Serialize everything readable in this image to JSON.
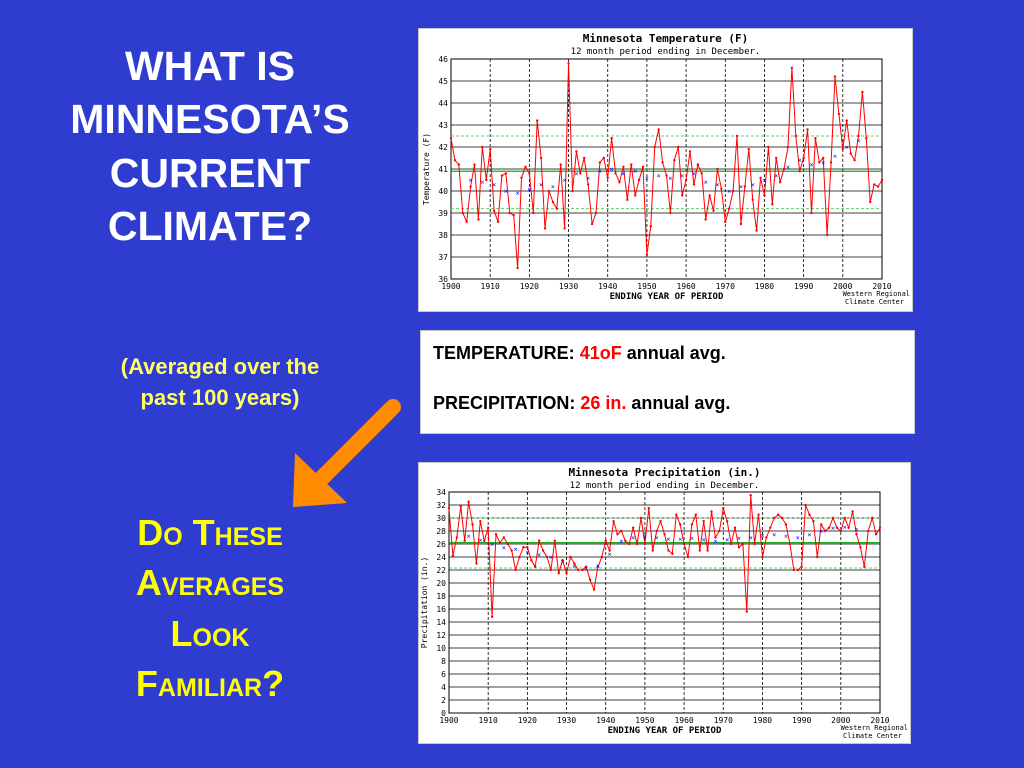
{
  "slide": {
    "title_lines": [
      "WHAT IS",
      "MINNESOTA’S",
      "CURRENT",
      "CLIMATE?"
    ],
    "subtitle_lines": [
      "(Averaged over the",
      "past 100 years)"
    ],
    "question_lines": [
      "Do These",
      "Averages",
      "Look",
      "Familiar?"
    ],
    "arrow_color": "#ff8c00",
    "background_color": "#2f3cd0"
  },
  "info": {
    "temp_label": "TEMPERATURE:",
    "temp_value": "41",
    "temp_unit": "oF",
    "temp_suffix": "annual avg.",
    "precip_label": "PRECIPITATION:",
    "precip_value": "26 in.",
    "precip_suffix": "annual avg."
  },
  "chart_data": [
    {
      "type": "line",
      "title": "Minnesota  Temperature (F)",
      "subtitle": "12 month period ending in December.",
      "xlabel": "ENDING YEAR OF PERIOD",
      "ylabel": "Temperature (F)",
      "credit": [
        "Western Regional",
        "Climate Center"
      ],
      "xlim": [
        1900,
        2010
      ],
      "ylim": [
        36,
        46
      ],
      "xticks": [
        1900,
        1910,
        1920,
        1930,
        1940,
        1950,
        1960,
        1970,
        1980,
        1990,
        2000,
        2010
      ],
      "yticks": [
        36,
        37,
        38,
        39,
        40,
        41,
        42,
        43,
        44,
        45,
        46
      ],
      "reference_lines": {
        "mean": 40.9,
        "std_band": [
          39.2,
          42.5
        ]
      },
      "colors": {
        "series": "#ff0000",
        "moving_avg": "#0000ff",
        "mean": "#00a000",
        "band": "#66cc66"
      },
      "series": [
        {
          "name": "annual",
          "x": [
            1900,
            1901,
            1902,
            1903,
            1904,
            1905,
            1906,
            1907,
            1908,
            1909,
            1910,
            1911,
            1912,
            1913,
            1914,
            1915,
            1916,
            1917,
            1918,
            1919,
            1920,
            1921,
            1922,
            1923,
            1924,
            1925,
            1926,
            1927,
            1928,
            1929,
            1930,
            1931,
            1932,
            1933,
            1934,
            1935,
            1936,
            1937,
            1938,
            1939,
            1940,
            1941,
            1942,
            1943,
            1944,
            1945,
            1946,
            1947,
            1948,
            1949,
            1950,
            1951,
            1952,
            1953,
            1954,
            1955,
            1956,
            1957,
            1958,
            1959,
            1960,
            1961,
            1962,
            1963,
            1964,
            1965,
            1966,
            1967,
            1968,
            1969,
            1970,
            1971,
            1972,
            1973,
            1974,
            1975,
            1976,
            1977,
            1978,
            1979,
            1980,
            1981,
            1982,
            1983,
            1984,
            1985,
            1986,
            1987,
            1988,
            1989,
            1990,
            1991,
            1992,
            1993,
            1994,
            1995,
            1996,
            1997,
            1998,
            1999,
            2000,
            2001,
            2002,
            2003,
            2004,
            2005,
            2006,
            2007,
            2008,
            2009,
            2010
          ],
          "values": [
            42.4,
            41.4,
            41.2,
            39.0,
            38.6,
            40.2,
            41.2,
            38.7,
            42.0,
            40.5,
            41.9,
            39.1,
            38.6,
            40.7,
            40.8,
            39.0,
            38.9,
            36.5,
            40.6,
            41.1,
            40.8,
            39.0,
            43.2,
            41.5,
            38.3,
            40.0,
            39.5,
            39.2,
            41.2,
            38.3,
            45.8,
            40.0,
            41.8,
            40.8,
            41.5,
            40.3,
            38.5,
            39.0,
            41.3,
            41.5,
            40.6,
            42.4,
            40.8,
            40.4,
            41.1,
            39.6,
            41.2,
            39.8,
            40.5,
            41.1,
            37.1,
            38.4,
            42.0,
            42.8,
            41.3,
            40.7,
            39.0,
            41.4,
            42.0,
            39.8,
            40.5,
            41.8,
            40.3,
            41.2,
            40.8,
            38.7,
            39.8,
            39.1,
            41.0,
            40.1,
            38.6,
            39.2,
            40.0,
            42.5,
            38.5,
            40.2,
            41.9,
            39.6,
            38.2,
            40.6,
            39.8,
            42.0,
            39.4,
            41.5,
            40.4,
            41.0,
            42.0,
            45.6,
            42.5,
            40.9,
            41.5,
            42.8,
            39.0,
            42.4,
            41.3,
            41.5,
            38.0,
            41.3,
            45.2,
            43.5,
            41.9,
            43.2,
            41.7,
            41.4,
            42.5,
            44.5,
            42.4,
            39.5,
            40.3,
            40.2,
            40.5
          ]
        },
        {
          "name": "moving average",
          "x": [
            1905,
            1908,
            1911,
            1914,
            1917,
            1920,
            1923,
            1926,
            1929,
            1932,
            1935,
            1938,
            1941,
            1944,
            1947,
            1950,
            1953,
            1956,
            1959,
            1962,
            1965,
            1968,
            1971,
            1974,
            1977,
            1980,
            1983,
            1986,
            1989,
            1992,
            1995,
            1998,
            2001,
            2004
          ],
          "values": [
            40.5,
            40.4,
            40.3,
            40.0,
            39.9,
            40.1,
            40.3,
            40.2,
            40.5,
            40.8,
            40.6,
            40.9,
            41.0,
            40.8,
            40.9,
            40.6,
            40.7,
            40.6,
            40.7,
            40.8,
            40.4,
            40.3,
            40.0,
            40.2,
            40.3,
            40.5,
            40.7,
            41.1,
            41.4,
            41.2,
            41.3,
            41.6,
            42.0,
            42.3
          ]
        }
      ]
    },
    {
      "type": "line",
      "title": "Minnesota  Precipitation (in.)",
      "subtitle": "12 month period ending in December.",
      "xlabel": "ENDING YEAR OF PERIOD",
      "ylabel": "Precipitation (in.)",
      "credit": [
        "Western Regional",
        "Climate Center"
      ],
      "xlim": [
        1900,
        2010
      ],
      "ylim": [
        0,
        34
      ],
      "xticks": [
        1900,
        1910,
        1920,
        1930,
        1940,
        1950,
        1960,
        1970,
        1980,
        1990,
        2000,
        2010
      ],
      "yticks": [
        0,
        2,
        4,
        6,
        8,
        10,
        12,
        14,
        16,
        18,
        20,
        22,
        24,
        26,
        28,
        30,
        32,
        34
      ],
      "reference_lines": {
        "mean": 26.2,
        "std_band": [
          22.3,
          30.0
        ]
      },
      "colors": {
        "series": "#ff0000",
        "moving_avg": "#0000ff",
        "mean": "#00a000",
        "band": "#66cc66"
      },
      "series": [
        {
          "name": "annual",
          "x": [
            1900,
            1901,
            1902,
            1903,
            1904,
            1905,
            1906,
            1907,
            1908,
            1909,
            1910,
            1911,
            1912,
            1913,
            1914,
            1915,
            1916,
            1917,
            1918,
            1919,
            1920,
            1921,
            1922,
            1923,
            1924,
            1925,
            1926,
            1927,
            1928,
            1929,
            1930,
            1931,
            1932,
            1933,
            1934,
            1935,
            1936,
            1937,
            1938,
            1939,
            1940,
            1941,
            1942,
            1943,
            1944,
            1945,
            1946,
            1947,
            1948,
            1949,
            1950,
            1951,
            1952,
            1953,
            1954,
            1955,
            1956,
            1957,
            1958,
            1959,
            1960,
            1961,
            1962,
            1963,
            1964,
            1965,
            1966,
            1967,
            1968,
            1969,
            1970,
            1971,
            1972,
            1973,
            1974,
            1975,
            1976,
            1977,
            1978,
            1979,
            1980,
            1981,
            1982,
            1983,
            1984,
            1985,
            1986,
            1987,
            1988,
            1989,
            1990,
            1991,
            1992,
            1993,
            1994,
            1995,
            1996,
            1997,
            1998,
            1999,
            2000,
            2001,
            2002,
            2003,
            2004,
            2005,
            2006,
            2007,
            2008,
            2009,
            2010
          ],
          "values": [
            31.5,
            24.2,
            27.0,
            31.8,
            26.5,
            32.5,
            29.0,
            23.0,
            29.5,
            26.5,
            28.5,
            14.8,
            27.5,
            26.2,
            27.0,
            26.0,
            25.0,
            22.0,
            24.0,
            25.5,
            25.5,
            23.5,
            22.5,
            26.5,
            25.0,
            24.0,
            22.0,
            26.5,
            21.5,
            23.5,
            21.5,
            24.0,
            23.0,
            22.0,
            22.0,
            22.5,
            20.5,
            19.0,
            22.5,
            24.0,
            26.5,
            25.0,
            29.5,
            27.5,
            28.0,
            26.5,
            26.0,
            28.5,
            26.0,
            30.0,
            26.0,
            31.5,
            25.0,
            28.0,
            29.5,
            27.5,
            25.0,
            24.5,
            30.5,
            29.0,
            26.0,
            24.0,
            29.0,
            30.5,
            25.0,
            29.5,
            25.0,
            31.0,
            27.0,
            28.0,
            31.5,
            29.5,
            26.0,
            28.5,
            25.5,
            26.0,
            15.6,
            33.5,
            26.0,
            30.5,
            24.0,
            27.0,
            28.5,
            30.0,
            30.5,
            30.0,
            29.0,
            26.0,
            22.0,
            22.0,
            22.5,
            32.0,
            30.5,
            29.5,
            24.0,
            29.0,
            28.0,
            28.5,
            30.0,
            28.5,
            28.0,
            30.0,
            28.5,
            31.0,
            27.5,
            25.5,
            22.5,
            28.0,
            30.0,
            27.5,
            28.5
          ]
        },
        {
          "name": "moving average",
          "x": [
            1905,
            1908,
            1911,
            1914,
            1917,
            1920,
            1923,
            1926,
            1929,
            1932,
            1935,
            1938,
            1941,
            1944,
            1947,
            1950,
            1953,
            1956,
            1959,
            1962,
            1965,
            1968,
            1971,
            1974,
            1977,
            1980,
            1983,
            1986,
            1989,
            1992,
            1995,
            1998,
            2001,
            2004
          ],
          "values": [
            27.2,
            26.6,
            26.0,
            25.5,
            25.2,
            24.8,
            24.4,
            24.0,
            23.3,
            22.6,
            22.3,
            22.7,
            24.5,
            26.5,
            27.0,
            27.2,
            27.0,
            26.8,
            26.8,
            26.9,
            26.7,
            26.5,
            26.7,
            26.9,
            27.0,
            27.3,
            27.5,
            27.2,
            27.0,
            27.5,
            28.0,
            28.5,
            28.6,
            28.3
          ]
        }
      ]
    }
  ]
}
